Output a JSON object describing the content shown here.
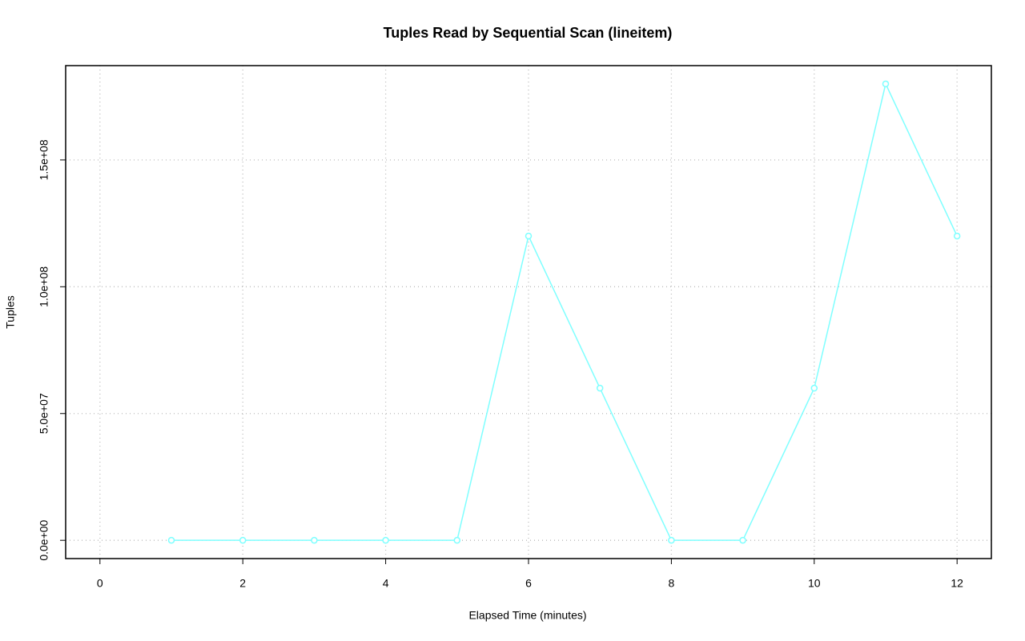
{
  "chart_data": {
    "type": "line",
    "title": "Tuples Read by Sequential Scan (lineitem)",
    "x_label": "Elapsed Time (minutes)",
    "y_label": "Tuples",
    "x": [
      1,
      2,
      3,
      4,
      5,
      6,
      7,
      8,
      9,
      10,
      11,
      12
    ],
    "series": [
      {
        "color": "#7fffff",
        "values": [
          0,
          0,
          0,
          0,
          0,
          120000000,
          60000000,
          0,
          0,
          60000000,
          180000000,
          120000000
        ]
      }
    ],
    "xlim": [
      -0.48,
      12.48
    ],
    "xticks": [
      0,
      2,
      4,
      6,
      8,
      10,
      12
    ],
    "ylim": [
      -7200000,
      187200000
    ],
    "yticks": [
      {
        "value": 0,
        "label": "0.0e+00"
      },
      {
        "value": 50000000,
        "label": "5.0e+07"
      },
      {
        "value": 100000000,
        "label": "1.0e+08"
      },
      {
        "value": 150000000,
        "label": "1.5e+08"
      }
    ],
    "grid": true
  }
}
